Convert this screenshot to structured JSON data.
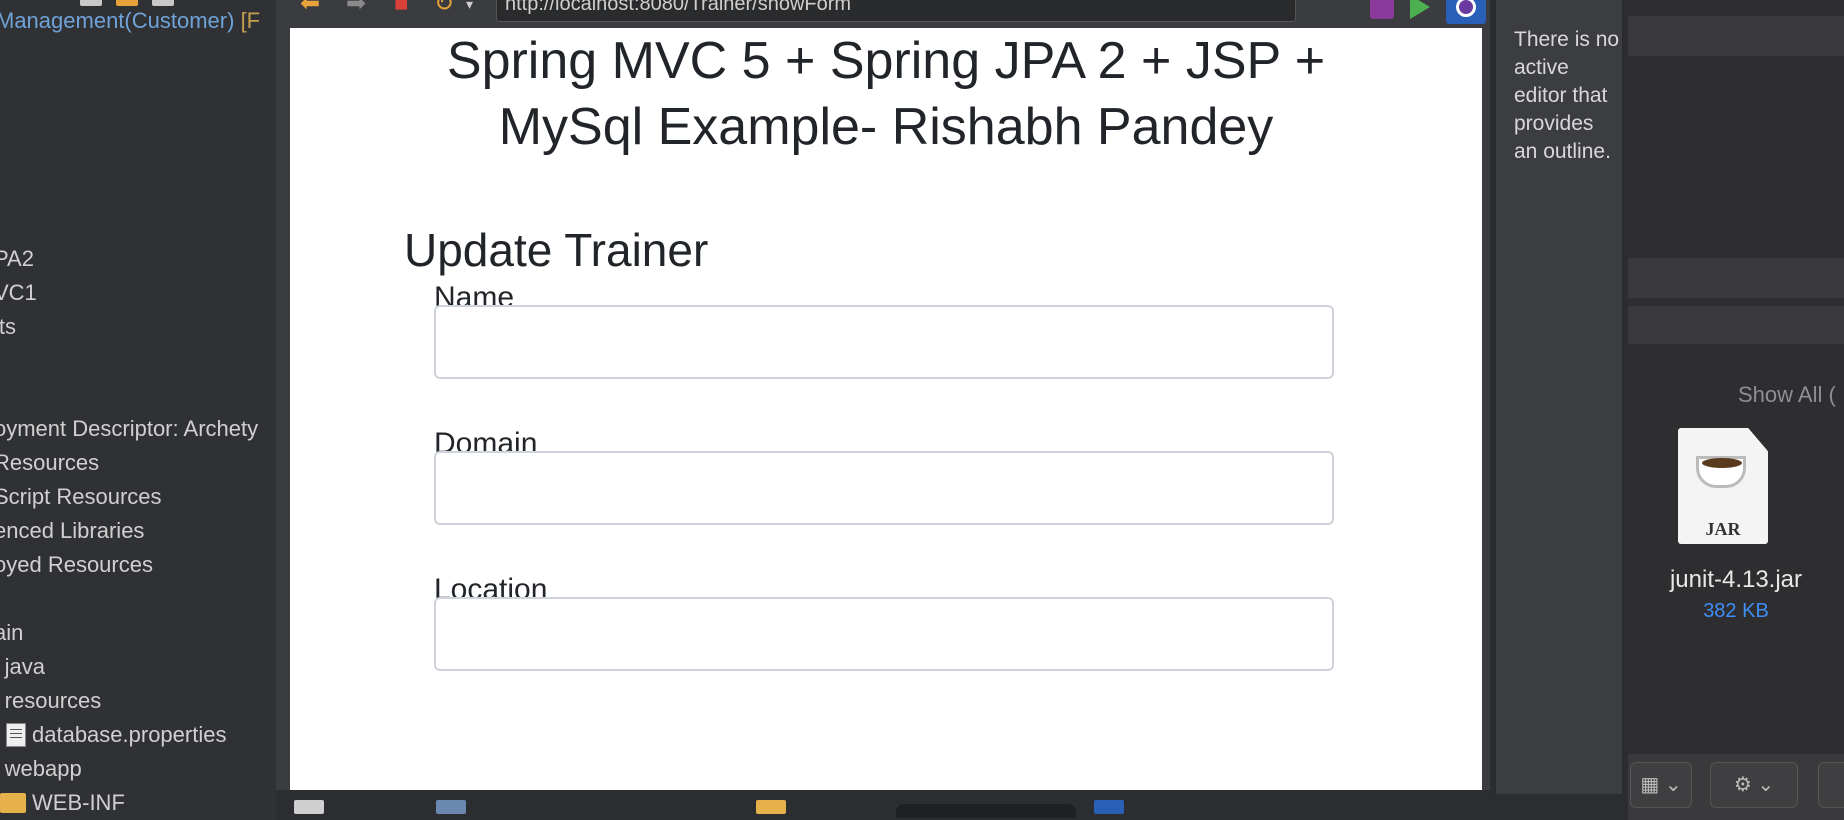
{
  "explorer": {
    "title": "Management(Customer)",
    "title_suffix": "[F",
    "items": [
      {
        "label": "PA2"
      },
      {
        "label": "VC1"
      },
      {
        "label": "lts"
      },
      {
        "label": "oyment Descriptor: Archety"
      },
      {
        "label": "Resources"
      },
      {
        "label": "Script Resources"
      },
      {
        "label": "enced Libraries"
      },
      {
        "label": "oyed Resources"
      },
      {
        "label": "ain"
      },
      {
        "label": "java"
      },
      {
        "label": "resources"
      },
      {
        "label": "database.properties"
      },
      {
        "label": "webapp"
      },
      {
        "label": "WEB-INF"
      }
    ]
  },
  "browser": {
    "url": "http://localhost:8080/Trainer/showForm",
    "back_icon": "arrow-left-icon",
    "forward_icon": "arrow-right-icon",
    "stop_icon": "stop-icon",
    "refresh_icon": "refresh-icon"
  },
  "page": {
    "heading_line1": "Spring MVC 5 + Spring JPA 2 + JSP +",
    "heading_line2": "MySql Example- Rishabh Pandey",
    "form_title": "Update Trainer",
    "fields": [
      {
        "label": "Name",
        "value": ""
      },
      {
        "label": "Domain",
        "value": ""
      },
      {
        "label": "Location",
        "value": ""
      }
    ]
  },
  "outline": {
    "message": "There is no active editor that provides an outline."
  },
  "finder": {
    "show_all": "Show All (",
    "file_name": "junit-4.13.jar",
    "file_size": "382 KB",
    "jar_label": "JAR"
  },
  "colors": {
    "accent": "#3f8ef5",
    "title_blue": "#6fa3d8"
  }
}
